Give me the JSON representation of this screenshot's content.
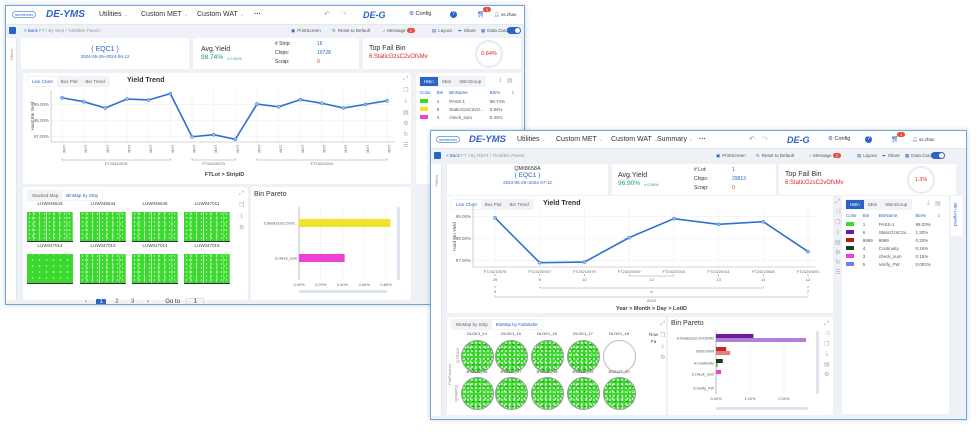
{
  "left_window": {
    "nav": {
      "brand_small": "semitronix",
      "brand": "DE-YMS",
      "menus": [
        "Utilities",
        "Custom MET",
        "Custom WAT",
        "···"
      ],
      "product": "DE-G",
      "config": "Config",
      "cart_badge": "1",
      "user": "ss.zhao"
    },
    "breadcrumb": {
      "back": "< Back",
      "items": [
        "FT",
        "/ By Strip",
        "/ Yield/Bin Pareto"
      ]
    },
    "toolbar": {
      "print": "PrintScreen",
      "reset": "Reset to Default",
      "message": "Message",
      "message_badge": "2",
      "layout": "Layout",
      "share": "Share",
      "data_cards": "Data Cards",
      "data_cards_on": true
    },
    "filters_label": "Filters",
    "cards": {
      "product": "-",
      "group": "( EQC1 )",
      "date_range": "2024-05-29~2024-06-12",
      "avg_yield_label": "Avg.Yield",
      "avg_yield": "98.74%",
      "avg_yield_delta": "± 0.91%",
      "count_label": "# Strip:",
      "count": "16",
      "chips_label": "Chips:",
      "chips": "19728",
      "scrap_label": "Scrap:",
      "scrap": "0",
      "top_fail_label": "Top Fail Bin",
      "top_fail_bin": "6:StaticGzsC2vOfsMv",
      "top_fail_pct": "0.84%"
    },
    "chart_tabs": [
      "Line Chart",
      "Box Plot",
      "Bin Trend"
    ],
    "chart_title": "Yield Trend",
    "legend": {
      "tabs": [
        "HBin",
        "SBin",
        "SBinGroup"
      ],
      "headers": [
        "Color",
        "Bin",
        "BinName",
        "Bin%"
      ],
      "rows": [
        {
          "color": "#3bd82e",
          "bin": "1",
          "name": "PASS-1",
          "pct": "98.74%"
        },
        {
          "color": "#f2e32a",
          "bin": "6",
          "name": "StaticGzsC2vO...",
          "pct": "0.84%"
        },
        {
          "color": "#ee3fd6",
          "bin": "3",
          "name": "check_sum",
          "pct": "0.42%"
        }
      ]
    },
    "binmap": {
      "tabs": [
        "Stacked Map",
        "BinMap by Strip"
      ],
      "strips": [
        "LUW046543",
        "LUW046544",
        "LUW046545",
        "LUW047011",
        "LUW047012",
        "LUW047013",
        "LUW047014",
        "LUW047015"
      ],
      "pages": [
        "1",
        "2",
        "3"
      ],
      "current_page": 1,
      "goto_label": "Go to",
      "goto_value": "1"
    },
    "pareto_title": "Bin Pareto"
  },
  "right_window": {
    "nav": {
      "brand_small": "semitronix",
      "brand": "DE-YMS",
      "menus": [
        "Utilities",
        "Custom MET",
        "Custom WAT",
        "Summary",
        "···"
      ],
      "product": "DE-G",
      "config": "Config",
      "cart_badge": "1",
      "user": "ss.zhao"
    },
    "breadcrumb": {
      "back": "< Back",
      "items": [
        "FT",
        "/ By OSAT",
        "/ Yield/Bin Pareto"
      ]
    },
    "toolbar": {
      "print": "PrintScreen",
      "reset": "Reset to Default",
      "message": "Message",
      "message_badge": "2",
      "layout": "Layout",
      "share": "Share",
      "data_cards": "Data Cards",
      "data_cards_on": true
    },
    "filters_label": "Filters",
    "cards": {
      "product": "QMI8658A",
      "group": "( EQC1 )",
      "date_range": "2024-05-29~2024-07-12",
      "avg_yield_label": "Avg.Yield",
      "avg_yield": "96.90%",
      "avg_yield_delta": "± 0.00%",
      "count_label": "# Lot:",
      "count": "1",
      "chips_label": "Chips:",
      "chips": "29813",
      "scrap_label": "Scrap:",
      "scrap": "0",
      "top_fail_label": "Top Fail Bin",
      "top_fail_bin": "6:StaticGzsC2vOfsMv",
      "top_fail_pct": "1.3%"
    },
    "chart_tabs": [
      "Line Chart",
      "Box Plot",
      "Bin Trend"
    ],
    "chart_title": "Yield Trend",
    "legend": {
      "tabs": [
        "HBin",
        "SBin",
        "SBinGroup"
      ],
      "headers": [
        "Color",
        "Bin",
        "BinName",
        "Bin%"
      ],
      "side_label": "Bin Legend",
      "rows": [
        {
          "color": "#3bd82e",
          "bin": "1",
          "name": "PASS-1",
          "pct": "98.03%"
        },
        {
          "color": "#6a1b9a",
          "bin": "6",
          "name": "StaticGzsC2v...",
          "pct": "1.30%"
        },
        {
          "color": "#b71c1c",
          "bin": "9999",
          "name": "9999",
          "pct": "0.32%"
        },
        {
          "color": "#1b3d1b",
          "bin": "4",
          "name": "Continuity",
          "pct": "0.16%"
        },
        {
          "color": "#ee3fd6",
          "bin": "3",
          "name": "check_sum",
          "pct": "0.15%"
        },
        {
          "color": "#6f7ff0",
          "bin": "5",
          "name": "Verify_FW",
          "pct": "0.002%"
        }
      ]
    },
    "binmap": {
      "tabs": [
        "BinMap by Strip",
        "BinMap by FabWafer"
      ],
      "facet_label": "FabProduct",
      "row_labels": [
        "QTE003",
        "QMI8658"
      ],
      "side_labels": [
        "Row",
        "Fa"
      ],
      "wafers": [
        {
          "id": "DLGK1_14"
        },
        {
          "id": "DLGK1_15"
        },
        {
          "id": "DLGK1_16"
        },
        {
          "id": "DLGK1_17"
        },
        {
          "id": "DLGK1_18",
          "empty": true
        },
        {
          "id": "BS2127_16"
        },
        {
          "id": "BS2127_17"
        },
        {
          "id": "BS2127_18"
        },
        {
          "id": "BS2127_19"
        },
        {
          "id": "BS2127_20"
        }
      ]
    },
    "pareto_title": "Bin Pareto"
  },
  "chart_data": [
    {
      "type": "line",
      "title": "Yield Trend",
      "ylabel": "Hard Bin Yield",
      "xlabel": "FTLot > StripID",
      "ylim": [
        96.6,
        99.95
      ],
      "yticks": [
        "99.00%",
        "98.00%",
        "97.00%"
      ],
      "ytick_values": [
        99,
        98,
        97
      ],
      "grid": true,
      "x_tick_labels": [
        "LUW",
        "LUW",
        "LUW",
        "LUW",
        "LUW",
        "LUW",
        "LUW",
        "LUW",
        "LUW",
        "LUW",
        "LUW",
        "LUW",
        "LUW",
        "LUW",
        "LUW",
        "LUW"
      ],
      "values": [
        99.44,
        99.19,
        98.79,
        99.36,
        99.3,
        99.7,
        96.97,
        97.1,
        96.81,
        99.04,
        98.87,
        99.32,
        99.09,
        98.79,
        99.02,
        99.25
      ],
      "groups": [
        {
          "label": "FT24210078",
          "start": 0,
          "end": 5
        },
        {
          "label": "FT24210079",
          "start": 6,
          "end": 8
        },
        {
          "label": "FT24220010",
          "start": 9,
          "end": 15
        }
      ],
      "color": "#2f6fd1"
    },
    {
      "type": "line",
      "title": "Yield Trend",
      "ylabel": "Hard Bin Yield",
      "xlabel": "Year > Month > Day > LotID",
      "ylim": [
        96.75,
        99.25
      ],
      "yticks": [
        "99.00%",
        "98.00%",
        "97.00%"
      ],
      "ytick_values": [
        99,
        98,
        97
      ],
      "grid": true,
      "categories": [
        "FT24210078",
        "FT24220007",
        "FT24210079",
        "FT24220009",
        "FT24220010",
        "FT24220011",
        "FT24220008",
        "FT24240001"
      ],
      "values": [
        98.95,
        96.89,
        96.92,
        98.04,
        98.91,
        98.65,
        98.77,
        97.4
      ],
      "day_groups": [
        {
          "label": "29",
          "start": 0,
          "end": 0
        },
        {
          "label": "5",
          "start": 1,
          "end": 1
        },
        {
          "label": "10",
          "start": 2,
          "end": 2
        },
        {
          "label": "12",
          "start": 3,
          "end": 4
        },
        {
          "label": "13",
          "start": 5,
          "end": 5
        },
        {
          "label": "14",
          "start": 6,
          "end": 6
        },
        {
          "label": "12",
          "start": 7,
          "end": 7
        }
      ],
      "month_groups": [
        {
          "label": "5",
          "start": 0,
          "end": 0
        },
        {
          "label": "6",
          "start": 1,
          "end": 6
        },
        {
          "label": "7",
          "start": 7,
          "end": 7
        }
      ],
      "year_groups": [
        {
          "label": "2024",
          "start": 0,
          "end": 7
        }
      ],
      "color": "#2f6fd1"
    },
    {
      "type": "bar",
      "orientation": "horizontal",
      "title": "Bin Pareto",
      "categories": [
        "6:StaticGzsC2vOf...",
        "3:check_sum"
      ],
      "values": [
        0.84,
        0.42
      ],
      "colors": [
        "#f2e32a",
        "#ee3fd6"
      ],
      "xticks": [
        "0.00%",
        "0.20%",
        "0.40%",
        "0.60%",
        "0.80%"
      ],
      "xtick_values": [
        0,
        0.2,
        0.4,
        0.6,
        0.8
      ],
      "xlim": [
        0,
        0.85
      ]
    },
    {
      "type": "bar",
      "orientation": "horizontal",
      "title": "Bin Pareto",
      "categories": [
        "6:StaticGzsC2vOfsMv",
        "9999:9999",
        "4:Continuity",
        "3:check_sum",
        "5:Verify_FW"
      ],
      "series": [
        {
          "values": [
            1.1,
            0.3,
            0.2,
            0.15,
            0.0
          ],
          "colors": [
            "#6a1b9a",
            "#c62828",
            "#1b3d1b",
            "#ee3fd6",
            "#6f7ff0"
          ]
        },
        {
          "values": [
            2.65,
            0.42,
            0.05,
            0.0,
            0.0
          ],
          "colors": [
            "#b07fd6",
            "#e57f7f",
            "#7da37d",
            "#f59ee9",
            "#aab3f5"
          ]
        }
      ],
      "xticks": [
        "0.00%",
        "1.00%",
        "2.00%"
      ],
      "xtick_values": [
        0,
        1,
        2
      ],
      "xlim": [
        0,
        2.7
      ]
    }
  ]
}
